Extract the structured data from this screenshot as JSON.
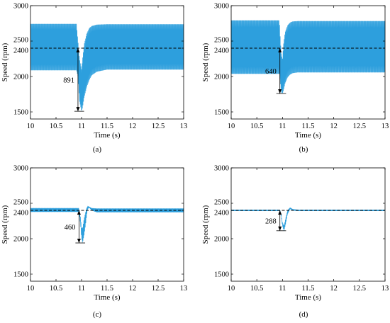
{
  "figure": {
    "line_color": "#2d9fdd",
    "ref_line_color": "#000000"
  },
  "chart_data": [
    {
      "type": "line",
      "panel_label": "(a)",
      "title": "",
      "xlabel": "Time (s)",
      "ylabel": "Speed (rpm)",
      "xlim": [
        10,
        13
      ],
      "ylim": [
        1400,
        3000
      ],
      "x_ticks": [
        "10",
        "10.5",
        "11",
        "11.5",
        "12",
        "12.5",
        "13"
      ],
      "y_ticks": [
        "1500",
        "2000",
        "2400",
        "2500",
        "3000"
      ],
      "reference_speed": 2400,
      "annotation": "891",
      "dip_minimum": 1509,
      "disturbance_time": 10.93,
      "steady_band_before": [
        2090,
        2740
      ],
      "steady_band_after": [
        2100,
        2735
      ],
      "series": [
        {
          "x": [
            10.0,
            10.9,
            10.93,
            10.96,
            11.0,
            11.02,
            11.05,
            11.1,
            11.15,
            11.2,
            11.3,
            11.5,
            13.0
          ],
          "y_min": [
            2090,
            2090,
            2000,
            1650,
            1509,
            1560,
            1700,
            1850,
            1950,
            2020,
            2070,
            2100,
            2100
          ],
          "y_max": [
            2740,
            2740,
            2500,
            2250,
            2100,
            2250,
            2450,
            2600,
            2680,
            2710,
            2730,
            2735,
            2735
          ]
        }
      ]
    },
    {
      "type": "line",
      "panel_label": "(b)",
      "title": "",
      "xlabel": "Time (s)",
      "ylabel": "Speed (rpm)",
      "xlim": [
        10,
        13
      ],
      "ylim": [
        1400,
        3000
      ],
      "x_ticks": [
        "10",
        "10.5",
        "11",
        "11.5",
        "12",
        "12.5",
        "13"
      ],
      "y_ticks": [
        "1500",
        "2000",
        "2400",
        "2500",
        "3000"
      ],
      "reference_speed": 2400,
      "annotation": "640",
      "dip_minimum": 1760,
      "disturbance_time": 10.95,
      "steady_band_before": [
        2040,
        2790
      ],
      "steady_band_after": [
        2060,
        2780
      ],
      "series": [
        {
          "x": [
            10.0,
            10.94,
            10.96,
            10.98,
            11.0,
            11.02,
            11.05,
            11.1,
            11.15,
            11.2,
            11.3,
            11.5,
            13.0
          ],
          "y_min": [
            2040,
            2040,
            1900,
            1780,
            1760,
            1800,
            1900,
            1990,
            2030,
            2050,
            2060,
            2060,
            2060
          ],
          "y_max": [
            2790,
            2790,
            2500,
            2300,
            2250,
            2450,
            2620,
            2720,
            2760,
            2775,
            2780,
            2780,
            2780
          ]
        }
      ]
    },
    {
      "type": "line",
      "panel_label": "(c)",
      "title": "",
      "xlabel": "Time (s)",
      "ylabel": "Speed (rpm)",
      "xlim": [
        10,
        13
      ],
      "ylim": [
        1400,
        3000
      ],
      "x_ticks": [
        "10",
        "10.5",
        "11",
        "11.5",
        "12",
        "12.5",
        "13"
      ],
      "y_ticks": [
        "1500",
        "2000",
        "2400",
        "2500",
        "3000"
      ],
      "reference_speed": 2400,
      "annotation": "460",
      "dip_minimum": 1940,
      "disturbance_time": 10.95,
      "steady_band_before": [
        2380,
        2430
      ],
      "steady_band_after": [
        2375,
        2425
      ],
      "series": [
        {
          "x": [
            10.0,
            10.95,
            10.98,
            11.0,
            11.02,
            11.05,
            11.08,
            11.1,
            11.12,
            11.15,
            11.2,
            11.3,
            13.0
          ],
          "y_min": [
            2380,
            2380,
            2200,
            2000,
            1940,
            2050,
            2200,
            2330,
            2420,
            2440,
            2400,
            2375,
            2375
          ],
          "y_max": [
            2430,
            2430,
            2300,
            2150,
            2150,
            2280,
            2380,
            2430,
            2460,
            2450,
            2430,
            2425,
            2425
          ]
        }
      ]
    },
    {
      "type": "line",
      "panel_label": "(d)",
      "title": "",
      "xlabel": "Time (s)",
      "ylabel": "Speed (rpm)",
      "xlim": [
        10,
        13
      ],
      "ylim": [
        1400,
        3000
      ],
      "x_ticks": [
        "10",
        "10.5",
        "11",
        "11.5",
        "12",
        "12.5",
        "13"
      ],
      "y_ticks": [
        "1500",
        "2000",
        "2400",
        "2500",
        "3000"
      ],
      "reference_speed": 2400,
      "annotation": "288",
      "dip_minimum": 2112,
      "disturbance_time": 10.95,
      "steady_band_before": [
        2393,
        2408
      ],
      "steady_band_after": [
        2393,
        2408
      ],
      "series": [
        {
          "x": [
            10.0,
            10.95,
            10.98,
            11.0,
            11.03,
            11.06,
            11.1,
            11.15,
            11.2,
            11.3,
            13.0
          ],
          "y_min": [
            2393,
            2393,
            2300,
            2180,
            2112,
            2200,
            2350,
            2420,
            2400,
            2393,
            2393
          ],
          "y_max": [
            2408,
            2408,
            2330,
            2230,
            2180,
            2280,
            2400,
            2440,
            2415,
            2408,
            2408
          ]
        }
      ]
    }
  ]
}
